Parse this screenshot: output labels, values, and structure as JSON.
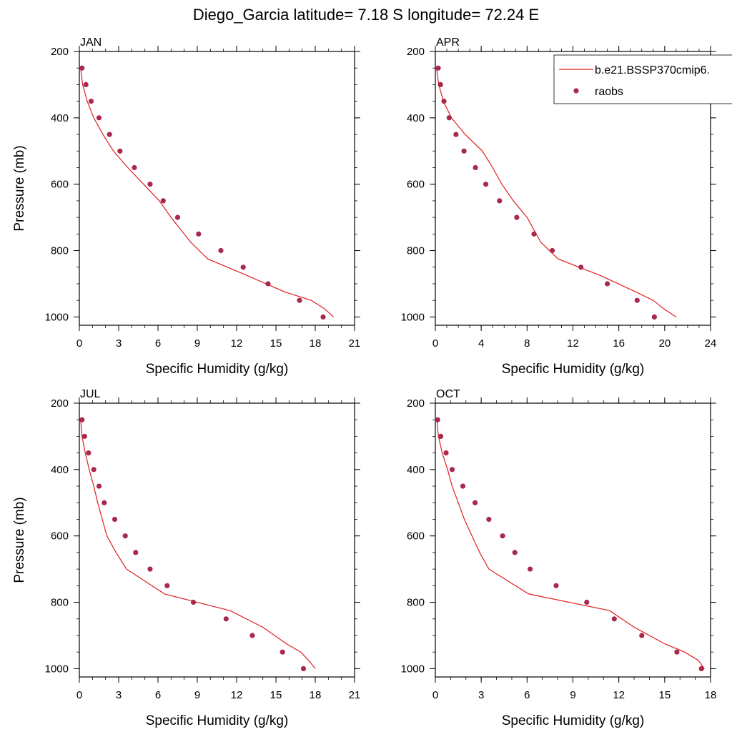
{
  "figure": {
    "title": "Diego_Garcia  latitude= 7.18 S longitude= 72.24 E"
  },
  "legend": {
    "line_label": "b.e21.BSSP370cmip6.",
    "points_label": "raobs"
  },
  "colors": {
    "model_line": "#e01e1e",
    "obs_points": "#a8284e"
  },
  "chart_data": [
    {
      "type": "line",
      "panel_label": "JAN",
      "xlabel": "Specific Humidity (g/kg)",
      "ylabel": "Pressure (mb)",
      "xlim": [
        0,
        21
      ],
      "ylim": [
        1025,
        200
      ],
      "x_ticks": [
        0,
        3,
        6,
        9,
        12,
        15,
        18,
        21
      ],
      "y_ticks": [
        200,
        400,
        600,
        800,
        1000
      ],
      "series": [
        {
          "name": "b.e21.BSSP370cmip6.",
          "style": "line",
          "x": [
            0.1,
            0.25,
            0.6,
            1.1,
            1.8,
            2.6,
            3.7,
            4.9,
            6.1,
            7.0,
            8.5,
            9.8,
            12.8,
            15.7,
            17.7,
            18.7,
            19.4
          ],
          "y": [
            250,
            300,
            350,
            400,
            450,
            500,
            550,
            600,
            650,
            700,
            775,
            825,
            875,
            925,
            950,
            975,
            1000
          ]
        },
        {
          "name": "raobs",
          "style": "points",
          "x": [
            0.2,
            0.5,
            0.9,
            1.5,
            2.3,
            3.1,
            4.2,
            5.4,
            6.4,
            7.5,
            9.1,
            10.8,
            12.5,
            14.4,
            16.8,
            18.6
          ],
          "y": [
            250,
            300,
            350,
            400,
            450,
            500,
            550,
            600,
            650,
            700,
            750,
            800,
            850,
            900,
            950,
            1000
          ]
        }
      ]
    },
    {
      "type": "line",
      "panel_label": "APR",
      "xlabel": "Specific Humidity (g/kg)",
      "ylabel": "",
      "xlim": [
        0,
        24
      ],
      "ylim": [
        1025,
        200
      ],
      "x_ticks": [
        0,
        4,
        8,
        12,
        16,
        20,
        24
      ],
      "y_ticks": [
        200,
        400,
        600,
        800,
        1000
      ],
      "series": [
        {
          "name": "b.e21.BSSP370cmip6.",
          "style": "line",
          "x": [
            0.1,
            0.3,
            0.7,
            1.4,
            2.6,
            4.1,
            5.0,
            5.8,
            6.8,
            8.0,
            9.2,
            10.7,
            14.4,
            17.5,
            19.0,
            19.9,
            21.0
          ],
          "y": [
            250,
            300,
            350,
            400,
            450,
            500,
            550,
            600,
            650,
            700,
            775,
            825,
            875,
            925,
            950,
            975,
            1000
          ]
        },
        {
          "name": "raobs",
          "style": "points",
          "x": [
            0.25,
            0.45,
            0.75,
            1.2,
            1.8,
            2.5,
            3.5,
            4.4,
            5.6,
            7.1,
            8.6,
            10.2,
            12.7,
            15.0,
            17.6,
            19.1
          ],
          "y": [
            250,
            300,
            350,
            400,
            450,
            500,
            550,
            600,
            650,
            700,
            750,
            800,
            850,
            900,
            950,
            1000
          ]
        }
      ]
    },
    {
      "type": "line",
      "panel_label": "JUL",
      "xlabel": "Specific Humidity (g/kg)",
      "ylabel": "Pressure (mb)",
      "xlim": [
        0,
        21
      ],
      "ylim": [
        1025,
        200
      ],
      "x_ticks": [
        0,
        3,
        6,
        9,
        12,
        15,
        18,
        21
      ],
      "y_ticks": [
        200,
        400,
        600,
        800,
        1000
      ],
      "series": [
        {
          "name": "b.e21.BSSP370cmip6.",
          "style": "line",
          "x": [
            0.1,
            0.2,
            0.45,
            0.75,
            1.1,
            1.4,
            1.75,
            2.1,
            2.8,
            3.6,
            6.5,
            11.5,
            14.0,
            15.8,
            16.9,
            17.5,
            18.0
          ],
          "y": [
            250,
            300,
            350,
            400,
            450,
            500,
            550,
            600,
            650,
            700,
            775,
            825,
            875,
            925,
            950,
            975,
            1000
          ]
        },
        {
          "name": "raobs",
          "style": "points",
          "x": [
            0.2,
            0.4,
            0.7,
            1.1,
            1.5,
            1.9,
            2.7,
            3.5,
            4.3,
            5.4,
            6.7,
            8.7,
            11.2,
            13.2,
            15.5,
            17.1
          ],
          "y": [
            250,
            300,
            350,
            400,
            450,
            500,
            550,
            600,
            650,
            700,
            750,
            800,
            850,
            900,
            950,
            1000
          ]
        }
      ]
    },
    {
      "type": "line",
      "panel_label": "OCT",
      "xlabel": "Specific Humidity (g/kg)",
      "ylabel": "",
      "xlim": [
        0,
        18
      ],
      "ylim": [
        1025,
        200
      ],
      "x_ticks": [
        0,
        3,
        6,
        9,
        12,
        15,
        18
      ],
      "y_ticks": [
        200,
        400,
        600,
        800,
        1000
      ],
      "series": [
        {
          "name": "b.e21.BSSP370cmip6.",
          "style": "line",
          "x": [
            0.1,
            0.2,
            0.45,
            0.8,
            1.1,
            1.5,
            1.9,
            2.4,
            2.9,
            3.5,
            6.1,
            11.4,
            13.0,
            15.0,
            16.3,
            17.2,
            17.6
          ],
          "y": [
            250,
            300,
            350,
            400,
            450,
            500,
            550,
            600,
            650,
            700,
            775,
            825,
            875,
            925,
            950,
            975,
            1000
          ]
        },
        {
          "name": "raobs",
          "style": "points",
          "x": [
            0.15,
            0.35,
            0.7,
            1.1,
            1.8,
            2.6,
            3.5,
            4.4,
            5.2,
            6.2,
            7.9,
            9.9,
            11.7,
            13.5,
            15.8,
            17.4
          ],
          "y": [
            250,
            300,
            350,
            400,
            450,
            500,
            550,
            600,
            650,
            700,
            750,
            800,
            850,
            900,
            950,
            1000
          ]
        }
      ]
    }
  ]
}
